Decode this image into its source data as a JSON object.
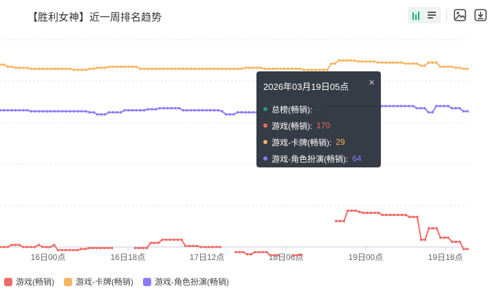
{
  "header": {
    "title": "【胜利女神】近一周排名趋势"
  },
  "toolbar": {
    "chart_view_icon": "bar-chart-icon",
    "table_view_icon": "table-list-icon",
    "image_icon": "image-icon",
    "download_icon": "download-icon",
    "accent": "#20a67a"
  },
  "tooltip": {
    "title": "2026年03月19日05点",
    "close": "×",
    "rows": [
      {
        "label": "总榜(畅销):",
        "value": "-",
        "color": "#1f9e72",
        "value_color": "#1f9e72"
      },
      {
        "label": "游戏(畅销):",
        "value": "170",
        "color": "#ee6b67",
        "value_color": "#ee6b67"
      },
      {
        "label": "游戏-卡牌(畅销):",
        "value": "29",
        "color": "#f8b55e",
        "value_color": "#f8b55e"
      },
      {
        "label": "游戏-角色扮演(畅销):",
        "value": "64",
        "color": "#8c7bff",
        "value_color": "#8c7bff"
      }
    ]
  },
  "chart_data": {
    "type": "line",
    "title": "【胜利女神】近一周排名趋势",
    "x_tick_labels": [
      "16日00点",
      "16日18点",
      "17日12点",
      "18日06点",
      "19日00点",
      "19日18点"
    ],
    "y_axis": {
      "inverted": true,
      "range": [
        0,
        200
      ],
      "tick_labels_visible": false
    },
    "grid": "horizontal dashed",
    "legend_position": "bottom-left",
    "series": [
      {
        "name": "游戏(畅销)",
        "color": "#ee6b67",
        "values": [
          200,
          200,
          200,
          198,
          198,
          198,
          200,
          200,
          200,
          200,
          198,
          200,
          200,
          200,
          198,
          203,
          203,
          203,
          203,
          203,
          203,
          202,
          202,
          201,
          201,
          201,
          201,
          201,
          201,
          201,
          null,
          null,
          null,
          null,
          null,
          201,
          201,
          201,
          201,
          196,
          196,
          196,
          193,
          193,
          193,
          193,
          193,
          193,
          199,
          199,
          199,
          199,
          200,
          200,
          200,
          200,
          200,
          200,
          null,
          null,
          null,
          205,
          205,
          205,
          207,
          207,
          205,
          205,
          205,
          205,
          208,
          208,
          208,
          null,
          null,
          null,
          208,
          208,
          208,
          null,
          null,
          null,
          null,
          null,
          null,
          null,
          null,
          175,
          175,
          175,
          165,
          165,
          165,
          166,
          167,
          167,
          167,
          167,
          167,
          169,
          169,
          169,
          169,
          169,
          169,
          169,
          171,
          171,
          171,
          193,
          193,
          182,
          182,
          182,
          191,
          191,
          191,
          195,
          195,
          195,
          202,
          202
        ]
      },
      {
        "name": "游戏-卡牌(畅销)",
        "color": "#f8b55e",
        "values": [
          24,
          24,
          26,
          26,
          27,
          27,
          27,
          27,
          28,
          28,
          28,
          28,
          28,
          28,
          28,
          28,
          28,
          28,
          28,
          29,
          29,
          29,
          29,
          28,
          28,
          27,
          27,
          27,
          26,
          26,
          26,
          26,
          26,
          26,
          26,
          26,
          28,
          28,
          28,
          28,
          28,
          28,
          28,
          28,
          28,
          28,
          28,
          28,
          28,
          28,
          28,
          28,
          28,
          28,
          28,
          28,
          28,
          28,
          28,
          28,
          28,
          28,
          28,
          27,
          27,
          27,
          27,
          27,
          28,
          28,
          28,
          28,
          28,
          28,
          28,
          28,
          28,
          28,
          29,
          29,
          29,
          29,
          29,
          29,
          29,
          23,
          23,
          20,
          20,
          20,
          20,
          20,
          21,
          21,
          21,
          21,
          21,
          22,
          22,
          22,
          22,
          22,
          22,
          22,
          23,
          23,
          23,
          23,
          25,
          25,
          22,
          22,
          22,
          26,
          26,
          26,
          26,
          27,
          27,
          28,
          28
        ]
      },
      {
        "name": "游戏-角色扮演(畅销)",
        "color": "#8c7bff",
        "values": [
          68,
          68,
          68,
          68,
          68,
          68,
          68,
          68,
          69,
          69,
          69,
          69,
          69,
          69,
          69,
          69,
          69,
          69,
          69,
          69,
          69,
          69,
          69,
          70,
          70,
          72,
          72,
          72,
          70,
          70,
          70,
          70,
          68,
          68,
          68,
          68,
          68,
          68,
          67,
          67,
          67,
          66,
          66,
          66,
          66,
          66,
          66,
          68,
          68,
          68,
          68,
          68,
          68,
          68,
          68,
          68,
          68,
          69,
          72,
          72,
          72,
          70,
          70,
          70,
          70,
          70,
          70,
          69,
          69,
          69,
          69,
          69,
          69,
          69,
          69,
          69,
          70,
          70,
          75,
          75,
          75,
          70,
          70,
          70,
          64,
          64,
          64,
          64,
          64,
          64,
          64,
          64,
          64,
          64,
          64,
          64,
          64,
          64,
          64,
          64,
          64,
          64,
          64,
          64,
          64,
          64,
          64,
          66,
          66,
          66,
          70,
          70,
          64,
          64,
          64,
          64,
          66,
          66,
          66,
          69,
          69
        ]
      }
    ]
  },
  "legend": {
    "items": [
      {
        "label": "游戏(畅销)",
        "color": "#ee6b67"
      },
      {
        "label": "游戏-卡牌(畅销)",
        "color": "#f8b55e"
      },
      {
        "label": "游戏-角色扮演(畅销)",
        "color": "#8c7bff"
      }
    ]
  }
}
